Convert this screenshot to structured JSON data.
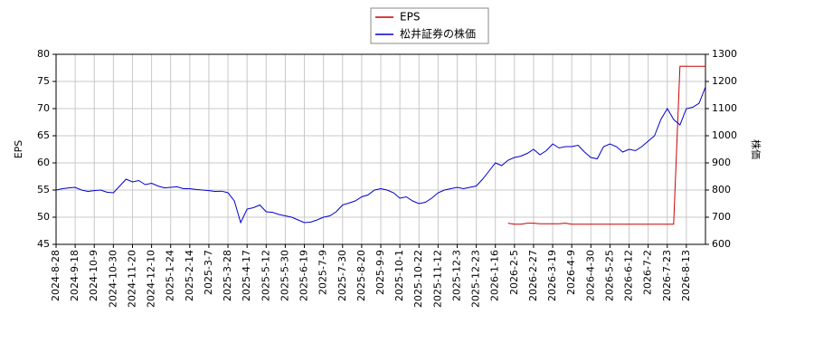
{
  "chart_data": {
    "type": "line",
    "y_label": "EPS",
    "y2_label": "株価",
    "categories": [
      "2024-8-28",
      null,
      null,
      "2024-9-18",
      null,
      null,
      "2024-10-9",
      null,
      null,
      "2024-10-30",
      null,
      null,
      "2024-11-20",
      null,
      null,
      "2024-12-10",
      null,
      null,
      "2025-1-24",
      null,
      null,
      "2025-2-14",
      null,
      null,
      "2025-3-7",
      null,
      null,
      "2025-3-28",
      null,
      null,
      "2025-4-17",
      null,
      null,
      "2025-5-12",
      null,
      null,
      "2025-5-30",
      null,
      null,
      "2025-6-19",
      null,
      null,
      "2025-7-9",
      null,
      null,
      "2025-7-30",
      null,
      null,
      "2025-8-20",
      null,
      null,
      "2025-9-9",
      null,
      null,
      "2025-10-1",
      null,
      null,
      "2025-10-22",
      null,
      null,
      "2025-11-12",
      null,
      null,
      "2025-12-3",
      null,
      null,
      "2025-12-23",
      null,
      null,
      "2026-1-16",
      null,
      null,
      "2026-2-5",
      null,
      null,
      "2026-2-27",
      null,
      null,
      "2026-3-19",
      null,
      null,
      "2026-4-9",
      null,
      null,
      "2026-4-30",
      null,
      null,
      "2026-5-25",
      null,
      null,
      "2026-6-12",
      null,
      null,
      "2026-7-2",
      null,
      null,
      "2026-7-23",
      null,
      null,
      "2026-8-13",
      null,
      null,
      null
    ],
    "series": [
      {
        "name": "EPS",
        "color": "#cc0000",
        "axis": "y",
        "values": [
          null,
          null,
          null,
          null,
          null,
          null,
          null,
          null,
          null,
          null,
          null,
          null,
          null,
          null,
          null,
          null,
          null,
          null,
          null,
          null,
          null,
          null,
          null,
          null,
          null,
          null,
          null,
          null,
          null,
          null,
          null,
          null,
          null,
          null,
          null,
          null,
          null,
          null,
          null,
          null,
          null,
          null,
          null,
          null,
          null,
          null,
          null,
          null,
          null,
          null,
          null,
          null,
          null,
          null,
          null,
          null,
          null,
          null,
          null,
          null,
          null,
          null,
          null,
          null,
          null,
          null,
          null,
          null,
          null,
          null,
          null,
          48.9,
          48.7,
          48.7,
          48.9,
          48.9,
          48.8,
          48.8,
          48.8,
          48.8,
          48.9,
          48.7,
          48.7,
          48.7,
          48.7,
          48.7,
          48.7,
          48.7,
          48.7,
          48.7,
          48.7,
          48.7,
          48.7,
          48.7,
          48.7,
          48.7,
          48.7,
          48.7,
          77.8,
          77.8,
          77.8,
          77.8,
          77.8
        ]
      },
      {
        "name": "松井証券の株価",
        "color": "#0000cc",
        "axis": "y2",
        "values": [
          800,
          805,
          808,
          810,
          800,
          795,
          798,
          800,
          792,
          790,
          815,
          840,
          830,
          835,
          820,
          825,
          815,
          808,
          810,
          812,
          805,
          805,
          802,
          800,
          798,
          795,
          796,
          790,
          760,
          680,
          730,
          735,
          745,
          720,
          718,
          710,
          705,
          700,
          690,
          680,
          682,
          690,
          700,
          705,
          720,
          745,
          752,
          760,
          775,
          782,
          800,
          805,
          800,
          790,
          770,
          775,
          760,
          750,
          755,
          770,
          790,
          800,
          805,
          810,
          805,
          810,
          815,
          840,
          870,
          900,
          890,
          910,
          920,
          925,
          935,
          950,
          930,
          945,
          970,
          955,
          960,
          960,
          965,
          940,
          920,
          915,
          960,
          970,
          960,
          940,
          950,
          945,
          960,
          980,
          1000,
          1060,
          1100,
          1060,
          1040,
          1100,
          1105,
          1120,
          1180
        ]
      }
    ],
    "ylim": [
      45,
      80
    ],
    "yticks": [
      45,
      50,
      55,
      60,
      65,
      70,
      75,
      80
    ],
    "y2lim": [
      600,
      1300
    ],
    "y2ticks": [
      600,
      700,
      800,
      900,
      1000,
      1100,
      1200,
      1300
    ],
    "grid": true,
    "legend": "top"
  }
}
